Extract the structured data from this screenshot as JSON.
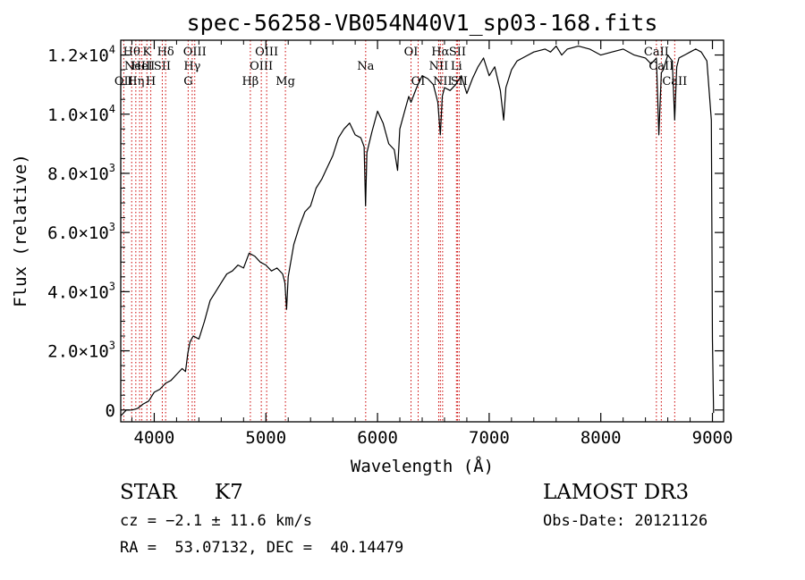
{
  "chart_data": {
    "type": "line",
    "title": "spec-56258-VB054N40V1_sp03-168.fits",
    "xlabel": "Wavelength (Å)",
    "ylabel": "Flux (relative)",
    "xlim": [
      3700,
      9100
    ],
    "ylim": [
      -400,
      12500
    ],
    "x_ticks": [
      4000,
      5000,
      6000,
      7000,
      8000,
      9000
    ],
    "x_tick_labels": [
      "4000",
      "5000",
      "6000",
      "7000",
      "8000",
      "9000"
    ],
    "y_ticks": [
      0,
      2000,
      4000,
      6000,
      8000,
      10000,
      12000
    ],
    "y_tick_labels": [
      {
        "mant": "0",
        "exp": ""
      },
      {
        "mant": "2.0×10",
        "exp": "3"
      },
      {
        "mant": "4.0×10",
        "exp": "3"
      },
      {
        "mant": "6.0×10",
        "exp": "3"
      },
      {
        "mant": "8.0×10",
        "exp": "3"
      },
      {
        "mant": "1.0×10",
        "exp": "4"
      },
      {
        "mant": "1.2×10",
        "exp": "4"
      }
    ],
    "spectrum": {
      "x": [
        3700,
        3750,
        3800,
        3850,
        3900,
        3950,
        4000,
        4050,
        4100,
        4150,
        4200,
        4250,
        4280,
        4300,
        4320,
        4350,
        4400,
        4450,
        4500,
        4550,
        4600,
        4650,
        4700,
        4750,
        4800,
        4850,
        4900,
        4950,
        5000,
        5050,
        5100,
        5150,
        5170,
        5185,
        5200,
        5250,
        5300,
        5350,
        5400,
        5450,
        5500,
        5550,
        5600,
        5650,
        5700,
        5750,
        5800,
        5850,
        5880,
        5893,
        5905,
        5950,
        6000,
        6050,
        6100,
        6150,
        6180,
        6200,
        6250,
        6280,
        6300,
        6350,
        6400,
        6450,
        6500,
        6540,
        6563,
        6580,
        6600,
        6650,
        6700,
        6750,
        6800,
        6850,
        6900,
        6950,
        7000,
        7050,
        7100,
        7130,
        7150,
        7200,
        7250,
        7300,
        7400,
        7500,
        7550,
        7600,
        7650,
        7700,
        7800,
        7900,
        8000,
        8100,
        8200,
        8300,
        8400,
        8450,
        8498,
        8520,
        8542,
        8560,
        8600,
        8640,
        8662,
        8680,
        8700,
        8750,
        8800,
        8850,
        8900,
        8950,
        8990,
        9000,
        9010
      ],
      "y": [
        -200,
        0,
        0,
        50,
        200,
        300,
        600,
        700,
        900,
        1000,
        1200,
        1400,
        1300,
        1900,
        2300,
        2500,
        2400,
        3000,
        3700,
        4000,
        4300,
        4600,
        4700,
        4900,
        4800,
        5300,
        5200,
        5000,
        4900,
        4700,
        4800,
        4600,
        4300,
        3400,
        4500,
        5600,
        6200,
        6700,
        6900,
        7500,
        7800,
        8200,
        8600,
        9200,
        9500,
        9700,
        9300,
        9200,
        8900,
        6900,
        8700,
        9400,
        10100,
        9700,
        9000,
        8800,
        8100,
        9500,
        10200,
        10600,
        10400,
        10900,
        11300,
        11200,
        11000,
        10400,
        9300,
        10600,
        10900,
        10800,
        11000,
        11300,
        10700,
        11200,
        11600,
        11900,
        11300,
        11600,
        10800,
        9800,
        10900,
        11500,
        11800,
        11900,
        12100,
        12200,
        12100,
        12300,
        12000,
        12200,
        12300,
        12200,
        12000,
        12100,
        12200,
        12000,
        11900,
        11700,
        11900,
        9300,
        11400,
        11500,
        12000,
        11800,
        9800,
        11600,
        11900,
        12000,
        12100,
        12200,
        12100,
        11800,
        9800,
        2400,
        -100
      ]
    },
    "line_markers": [
      {
        "wave": 3727,
        "rows": [
          {
            "text": "OII",
            "row": 3
          }
        ]
      },
      {
        "wave": 3798,
        "rows": [
          {
            "text": "Hθ",
            "row": 1
          }
        ]
      },
      {
        "wave": 3835,
        "rows": [
          {
            "text": "Hη",
            "row": 3
          }
        ]
      },
      {
        "wave": 3869,
        "rows": [
          {
            "text": "NeIII",
            "row": 2
          }
        ]
      },
      {
        "wave": 3889,
        "rows": [
          {
            "text": "HeI",
            "row": 2
          }
        ]
      },
      {
        "wave": 3934,
        "rows": [
          {
            "text": "K",
            "row": 1
          }
        ]
      },
      {
        "wave": 3969,
        "rows": [
          {
            "text": "H",
            "row": 3
          }
        ]
      },
      {
        "wave": 4072,
        "rows": [
          {
            "text": "SII",
            "row": 2
          }
        ]
      },
      {
        "wave": 4102,
        "rows": [
          {
            "text": "Hδ",
            "row": 1
          }
        ]
      },
      {
        "wave": 4304,
        "rows": [
          {
            "text": "G",
            "row": 3
          }
        ]
      },
      {
        "wave": 4340,
        "rows": [
          {
            "text": "Hγ",
            "row": 2
          }
        ]
      },
      {
        "wave": 4363,
        "rows": [
          {
            "text": "OIII",
            "row": 1
          }
        ]
      },
      {
        "wave": 4861,
        "rows": [
          {
            "text": "Hβ",
            "row": 3
          }
        ]
      },
      {
        "wave": 4959,
        "rows": [
          {
            "text": "OIII",
            "row": 2
          }
        ]
      },
      {
        "wave": 5007,
        "rows": [
          {
            "text": "OIII",
            "row": 1
          }
        ]
      },
      {
        "wave": 5175,
        "rows": [
          {
            "text": "Mg",
            "row": 3
          }
        ]
      },
      {
        "wave": 5894,
        "rows": [
          {
            "text": "Na",
            "row": 2
          }
        ]
      },
      {
        "wave": 6300,
        "rows": [
          {
            "text": "OI",
            "row": 1
          }
        ]
      },
      {
        "wave": 6364,
        "rows": [
          {
            "text": "OI",
            "row": 3
          }
        ]
      },
      {
        "wave": 6548,
        "rows": [
          {
            "text": "NII",
            "row": 2
          }
        ]
      },
      {
        "wave": 6563,
        "rows": [
          {
            "text": "Hα",
            "row": 1
          }
        ]
      },
      {
        "wave": 6583,
        "rows": [
          {
            "text": "NII",
            "row": 3
          }
        ]
      },
      {
        "wave": 6707,
        "rows": [
          {
            "text": "Li",
            "row": 2
          }
        ]
      },
      {
        "wave": 6716,
        "rows": [
          {
            "text": "SII",
            "row": 1
          }
        ]
      },
      {
        "wave": 6731,
        "rows": [
          {
            "text": "SII",
            "row": 3
          }
        ]
      },
      {
        "wave": 8498,
        "rows": [
          {
            "text": "CaII",
            "row": 1
          }
        ]
      },
      {
        "wave": 8542,
        "rows": [
          {
            "text": "CaII",
            "row": 2
          }
        ]
      },
      {
        "wave": 8662,
        "rows": [
          {
            "text": "CaII",
            "row": 3
          }
        ]
      }
    ],
    "line_marker_color": "#cc0000",
    "spectrum_color": "#000000"
  },
  "info": {
    "class_label": "STAR",
    "subclass": "K7",
    "survey": "LAMOST DR3",
    "cz": "cz = −2.1 ± 11.6 km/s",
    "obs_date": "Obs-Date: 20121126",
    "radec": "RA =  53.07132, DEC =  40.14479"
  }
}
